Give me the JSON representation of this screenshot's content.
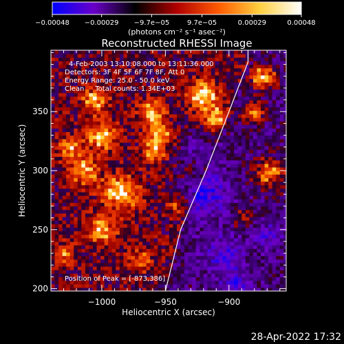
{
  "chart_data": {
    "type": "heatmap",
    "title": "Reconstructed RHESSI Image",
    "xlabel": "Heliocentric X (arcsec)",
    "ylabel": "Heliocentric Y (arcsec)",
    "xlim": [
      -1040,
      -855
    ],
    "ylim": [
      198,
      402
    ],
    "x_ticks": [
      -1000,
      -950,
      -900
    ],
    "x_tick_labels": [
      "−1000",
      "−950",
      "−900"
    ],
    "y_ticks": [
      200,
      250,
      300,
      350
    ],
    "y_tick_labels": [
      "200",
      "250",
      "300",
      "350"
    ],
    "colorbar": {
      "range": [
        -0.00048,
        0.00048
      ],
      "ticks": [
        -0.00048,
        -0.00029,
        -9.7e-05,
        9.7e-05,
        0.00029,
        0.00048
      ],
      "tick_labels": [
        "−0.00048",
        "−0.00029",
        "−9.7e−05",
        "9.7e−05",
        "0.00029",
        "0.00048"
      ],
      "label": "(photons cm⁻² s⁻¹ asec⁻²)",
      "colors": [
        "#0000ff",
        "#6a00c8",
        "#000000",
        "#b00000",
        "#ff5a00",
        "#ffd040",
        "#ffffff"
      ]
    },
    "annotations": [
      "4-Feb-2003 13:10:08.000 to 13:11:36.000",
      "Detectors: 3F 4F 5F 6F 7F 8F, Att 0",
      "Energy Range: 25.0 - 50.0 keV",
      "Clean     Total counts: 1.34E+03"
    ],
    "peak_label": "Position of Peak = [-873,386]",
    "peak": [
      -873,
      386
    ],
    "limb_curve": [
      [
        -950,
        198
      ],
      [
        -938,
        250
      ],
      [
        -918,
        300
      ],
      [
        -900,
        350
      ],
      [
        -885,
        392
      ]
    ],
    "hot_regions": [
      {
        "x": -1005,
        "y": 360,
        "r": 10,
        "v": 0.8
      },
      {
        "x": -1000,
        "y": 330,
        "r": 12,
        "v": 0.85
      },
      {
        "x": -1015,
        "y": 300,
        "r": 12,
        "v": 0.75
      },
      {
        "x": -985,
        "y": 282,
        "r": 14,
        "v": 0.95
      },
      {
        "x": -1000,
        "y": 250,
        "r": 12,
        "v": 0.7
      },
      {
        "x": -960,
        "y": 350,
        "r": 10,
        "v": 0.8
      },
      {
        "x": -955,
        "y": 330,
        "r": 10,
        "v": 0.75
      },
      {
        "x": -960,
        "y": 315,
        "r": 9,
        "v": 0.65
      },
      {
        "x": -940,
        "y": 270,
        "r": 8,
        "v": 0.55
      },
      {
        "x": -920,
        "y": 365,
        "r": 12,
        "v": 0.85
      },
      {
        "x": -910,
        "y": 345,
        "r": 10,
        "v": 0.7
      },
      {
        "x": -873,
        "y": 380,
        "r": 10,
        "v": 1.0
      },
      {
        "x": -880,
        "y": 350,
        "r": 9,
        "v": 0.8
      },
      {
        "x": -868,
        "y": 298,
        "r": 12,
        "v": 0.85
      },
      {
        "x": -890,
        "y": 260,
        "r": 8,
        "v": 0.45
      },
      {
        "x": -1025,
        "y": 320,
        "r": 9,
        "v": 0.7
      },
      {
        "x": -970,
        "y": 225,
        "r": 10,
        "v": 0.55
      },
      {
        "x": -1030,
        "y": 230,
        "r": 9,
        "v": 0.5
      }
    ],
    "cold_regions": [
      {
        "x": -920,
        "y": 280,
        "r": 20,
        "v": -0.55
      },
      {
        "x": -905,
        "y": 230,
        "r": 16,
        "v": -0.45
      },
      {
        "x": -925,
        "y": 320,
        "r": 14,
        "v": -0.45
      },
      {
        "x": -895,
        "y": 205,
        "r": 12,
        "v": -0.45
      },
      {
        "x": -870,
        "y": 245,
        "r": 12,
        "v": -0.4
      }
    ]
  },
  "footer": {
    "timestamp": "28-Apr-2022 17:32"
  }
}
